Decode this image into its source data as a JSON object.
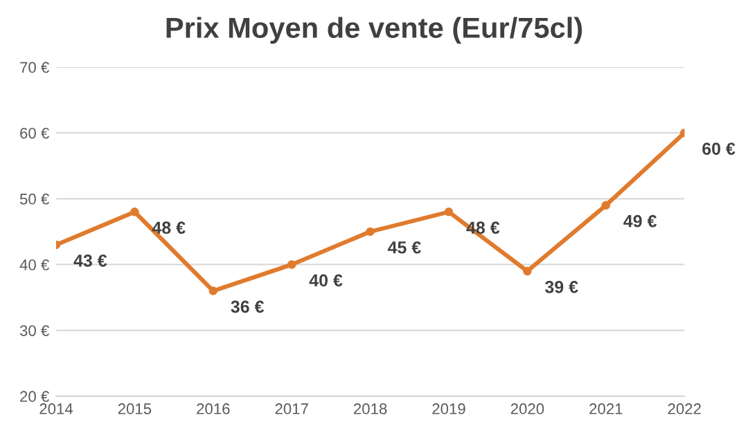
{
  "chart_data": {
    "type": "line",
    "title": "Prix Moyen de vente (Eur/75cl)",
    "x": [
      2014,
      2015,
      2016,
      2017,
      2018,
      2019,
      2020,
      2021,
      2022
    ],
    "series": [
      {
        "color": "#e07b2e",
        "values": [
          43,
          48,
          36,
          40,
          45,
          48,
          39,
          49,
          60
        ],
        "value_labels": [
          "43 €",
          "48 €",
          "36 €",
          "40 €",
          "45 €",
          "48 €",
          "39 €",
          "49 €",
          "60 €"
        ]
      }
    ],
    "xlim": [
      2014,
      2022
    ],
    "xticks": [
      2014,
      2015,
      2016,
      2017,
      2018,
      2019,
      2020,
      2021,
      2022
    ],
    "ylim": [
      20,
      70
    ],
    "yticks": [
      {
        "value": 20,
        "label": "20 €"
      },
      {
        "value": 30,
        "label": "30 €"
      },
      {
        "value": 40,
        "label": "40 €"
      },
      {
        "value": 50,
        "label": "50 €"
      },
      {
        "value": 60,
        "label": "60 €"
      },
      {
        "value": 70,
        "label": "70 €"
      }
    ],
    "grid": "y",
    "marker": "circle",
    "line_style": "solid"
  }
}
